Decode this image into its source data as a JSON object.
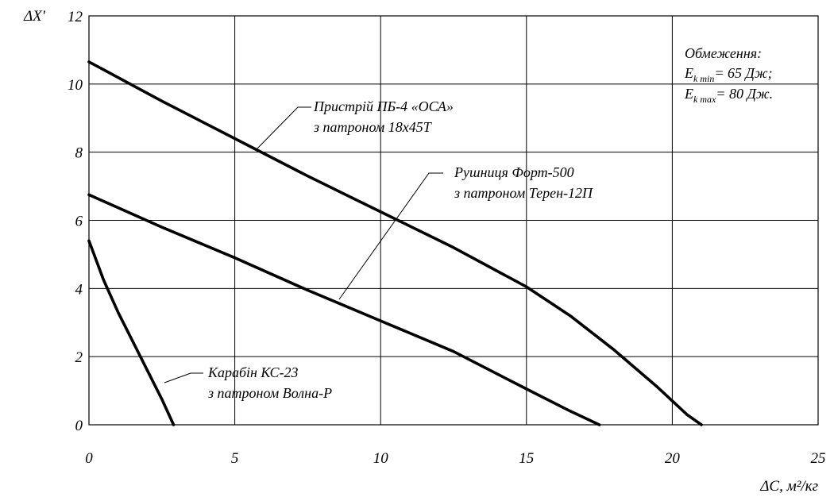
{
  "chart_data": {
    "type": "line",
    "xlabel": "ΔC, м²/кг",
    "ylabel": "ΔX'",
    "xlim": [
      0,
      25
    ],
    "ylim": [
      0,
      12
    ],
    "x_ticks": [
      "0",
      "5",
      "10",
      "15",
      "20",
      "25"
    ],
    "y_ticks": [
      "0",
      "2",
      "4",
      "6",
      "8",
      "10",
      "12"
    ],
    "grid": true,
    "constraints": {
      "title": "Обмеження:",
      "lines": [
        {
          "pre": "E",
          "sub": "k min",
          "post": "= 65 Дж;"
        },
        {
          "pre": "E",
          "sub": "k max",
          "post": "= 80 Дж."
        }
      ]
    },
    "series": [
      {
        "label_lines": [
          "Пристрій ПБ-4 «ОСА»",
          "з патроном 18х45Т"
        ],
        "x": [
          0,
          2.5,
          5,
          7.5,
          10,
          12.5,
          15,
          16.5,
          18,
          19.5,
          20.5,
          21
        ],
        "y": [
          10.65,
          9.5,
          8.4,
          7.3,
          6.25,
          5.2,
          4.05,
          3.2,
          2.2,
          1.1,
          0.3,
          0
        ]
      },
      {
        "label_lines": [
          "Рушниця Форт-500",
          "з патроном Терен-12П"
        ],
        "x": [
          0,
          2.5,
          5,
          7.5,
          10,
          12.5,
          15,
          16.5,
          17.5
        ],
        "y": [
          6.75,
          5.8,
          4.9,
          3.95,
          3.05,
          2.15,
          1.05,
          0.4,
          0
        ]
      },
      {
        "label_lines": [
          "Карабін КС-23",
          "з патроном Волна-Р"
        ],
        "x": [
          0,
          0.5,
          1,
          1.5,
          2,
          2.5,
          2.9
        ],
        "y": [
          5.4,
          4.25,
          3.3,
          2.45,
          1.6,
          0.75,
          0
        ]
      }
    ]
  }
}
